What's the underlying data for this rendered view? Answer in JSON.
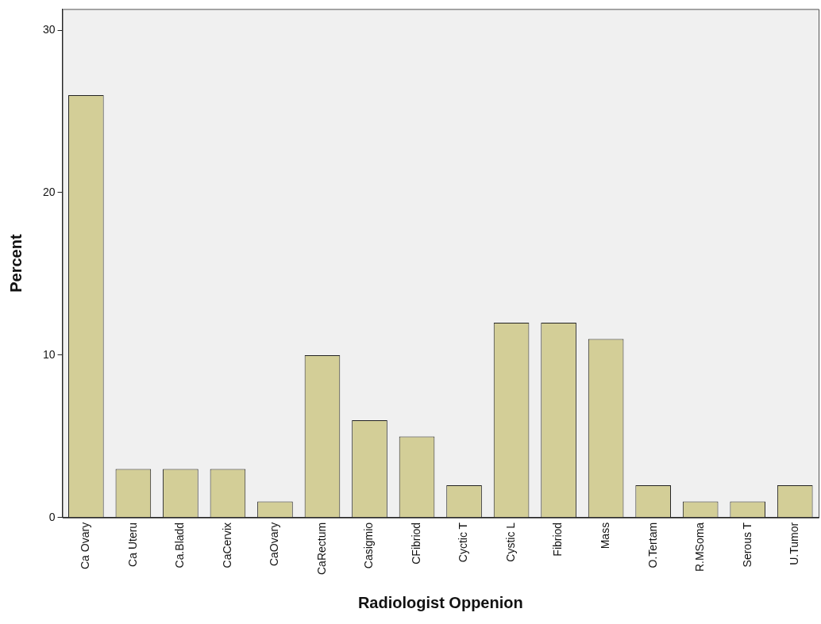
{
  "chart_data": {
    "type": "bar",
    "xlabel": "Radiologist Oppenion",
    "ylabel": "Percent",
    "categories": [
      "Ca Ovary",
      "Ca Uteru",
      "Ca.Bladd",
      "CaCervix",
      "CaOvary",
      "CaRectum",
      "Casigmio",
      "CFibriod",
      "Cyctic T",
      "Cystic L",
      "Fibriod",
      "Mass",
      "O.Tertam",
      "R.MSoma",
      "Serous T",
      "U.Tumor"
    ],
    "values": [
      26,
      3,
      3,
      3,
      1,
      10,
      6,
      5,
      2,
      12,
      12,
      11,
      2,
      1,
      1,
      2
    ],
    "color": "#d3ce97",
    "ylim": [
      0,
      31.3
    ],
    "yticks": [
      0,
      10,
      20,
      30
    ],
    "grid": false,
    "legend": false
  }
}
